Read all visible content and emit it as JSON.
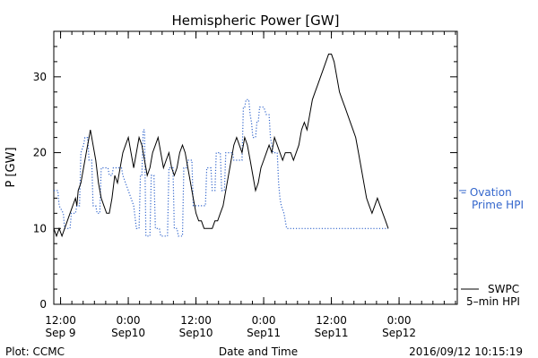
{
  "chart_data": {
    "type": "line",
    "title": "Hemispheric Power [GW]",
    "ylabel": "P [GW]",
    "xlabel": "Date and Time",
    "ylim": [
      0,
      36
    ],
    "yticks": [
      0,
      10,
      20,
      30
    ],
    "grid": false,
    "xticks": [
      {
        "x": 0.5,
        "line1": "12:00",
        "line2": "Sep 9"
      },
      {
        "x": 1.0,
        "line1": "0:00",
        "line2": "Sep10"
      },
      {
        "x": 1.5,
        "line1": "12:00",
        "line2": "Sep10"
      },
      {
        "x": 2.0,
        "line1": "0:00",
        "line2": "Sep11"
      },
      {
        "x": 2.5,
        "line1": "12:00",
        "line2": "Sep11"
      },
      {
        "x": 3.0,
        "line1": "0:00",
        "line2": "Sep12"
      }
    ],
    "xlim": [
      0.45,
      3.43
    ],
    "series": [
      {
        "name": "SWPC 5-min HPI",
        "legend_line1": "SWPC",
        "legend_line2": "5–min HPI",
        "color": "#000000",
        "style": "solid",
        "points": [
          [
            0.45,
            10
          ],
          [
            0.47,
            9
          ],
          [
            0.49,
            10
          ],
          [
            0.51,
            9
          ],
          [
            0.53,
            10
          ],
          [
            0.55,
            11
          ],
          [
            0.57,
            12
          ],
          [
            0.59,
            13
          ],
          [
            0.61,
            14
          ],
          [
            0.62,
            13
          ],
          [
            0.63,
            15
          ],
          [
            0.65,
            16
          ],
          [
            0.67,
            18
          ],
          [
            0.69,
            20
          ],
          [
            0.71,
            22
          ],
          [
            0.72,
            23
          ],
          [
            0.74,
            21
          ],
          [
            0.76,
            19
          ],
          [
            0.78,
            16
          ],
          [
            0.8,
            14
          ],
          [
            0.82,
            13
          ],
          [
            0.84,
            12
          ],
          [
            0.86,
            12
          ],
          [
            0.88,
            14
          ],
          [
            0.9,
            17
          ],
          [
            0.92,
            16
          ],
          [
            0.94,
            18
          ],
          [
            0.96,
            20
          ],
          [
            0.98,
            21
          ],
          [
            1.0,
            22
          ],
          [
            1.02,
            20
          ],
          [
            1.04,
            18
          ],
          [
            1.06,
            20
          ],
          [
            1.08,
            22
          ],
          [
            1.1,
            21
          ],
          [
            1.12,
            19
          ],
          [
            1.14,
            17
          ],
          [
            1.16,
            18
          ],
          [
            1.18,
            20
          ],
          [
            1.2,
            21
          ],
          [
            1.22,
            22
          ],
          [
            1.24,
            20
          ],
          [
            1.26,
            18
          ],
          [
            1.28,
            19
          ],
          [
            1.3,
            20
          ],
          [
            1.32,
            18
          ],
          [
            1.34,
            17
          ],
          [
            1.36,
            18
          ],
          [
            1.38,
            20
          ],
          [
            1.4,
            21
          ],
          [
            1.42,
            20
          ],
          [
            1.44,
            18
          ],
          [
            1.46,
            16
          ],
          [
            1.48,
            14
          ],
          [
            1.5,
            12
          ],
          [
            1.52,
            11
          ],
          [
            1.54,
            11
          ],
          [
            1.56,
            10
          ],
          [
            1.58,
            10
          ],
          [
            1.6,
            10
          ],
          [
            1.62,
            10
          ],
          [
            1.64,
            11
          ],
          [
            1.66,
            11
          ],
          [
            1.68,
            12
          ],
          [
            1.7,
            13
          ],
          [
            1.72,
            15
          ],
          [
            1.74,
            17
          ],
          [
            1.76,
            19
          ],
          [
            1.78,
            21
          ],
          [
            1.8,
            22
          ],
          [
            1.82,
            21
          ],
          [
            1.84,
            20
          ],
          [
            1.86,
            22
          ],
          [
            1.88,
            21
          ],
          [
            1.9,
            19
          ],
          [
            1.92,
            17
          ],
          [
            1.94,
            15
          ],
          [
            1.96,
            16
          ],
          [
            1.98,
            18
          ],
          [
            2.0,
            19
          ],
          [
            2.02,
            20
          ],
          [
            2.04,
            21
          ],
          [
            2.06,
            20
          ],
          [
            2.08,
            22
          ],
          [
            2.1,
            21
          ],
          [
            2.12,
            20
          ],
          [
            2.14,
            19
          ],
          [
            2.16,
            20
          ],
          [
            2.18,
            20
          ],
          [
            2.2,
            20
          ],
          [
            2.22,
            19
          ],
          [
            2.24,
            20
          ],
          [
            2.26,
            21
          ],
          [
            2.28,
            23
          ],
          [
            2.3,
            24
          ],
          [
            2.32,
            23
          ],
          [
            2.34,
            25
          ],
          [
            2.36,
            27
          ],
          [
            2.38,
            28
          ],
          [
            2.4,
            29
          ],
          [
            2.42,
            30
          ],
          [
            2.44,
            31
          ],
          [
            2.46,
            32
          ],
          [
            2.48,
            33
          ],
          [
            2.5,
            33
          ],
          [
            2.52,
            32
          ],
          [
            2.54,
            30
          ],
          [
            2.56,
            28
          ],
          [
            2.58,
            27
          ],
          [
            2.6,
            26
          ],
          [
            2.62,
            25
          ],
          [
            2.64,
            24
          ],
          [
            2.66,
            23
          ],
          [
            2.68,
            22
          ],
          [
            2.7,
            20
          ],
          [
            2.72,
            18
          ],
          [
            2.74,
            16
          ],
          [
            2.76,
            14
          ],
          [
            2.78,
            13
          ],
          [
            2.8,
            12
          ],
          [
            2.82,
            13
          ],
          [
            2.84,
            14
          ],
          [
            2.86,
            13
          ],
          [
            2.88,
            12
          ],
          [
            2.9,
            11
          ],
          [
            2.92,
            10
          ]
        ]
      },
      {
        "name": "Ovation Prime HPI",
        "legend_line1": "– Ovation",
        "legend_line2": "Prime HPI",
        "color": "#3366cc",
        "style": "dotted",
        "points": [
          [
            0.45,
            15
          ],
          [
            0.48,
            15
          ],
          [
            0.49,
            13
          ],
          [
            0.52,
            12
          ],
          [
            0.53,
            10
          ],
          [
            0.57,
            10
          ],
          [
            0.58,
            12
          ],
          [
            0.61,
            12
          ],
          [
            0.62,
            13
          ],
          [
            0.64,
            13
          ],
          [
            0.65,
            20
          ],
          [
            0.67,
            21
          ],
          [
            0.68,
            22
          ],
          [
            0.7,
            22
          ],
          [
            0.71,
            19
          ],
          [
            0.73,
            19
          ],
          [
            0.74,
            13
          ],
          [
            0.76,
            13
          ],
          [
            0.77,
            12
          ],
          [
            0.79,
            12
          ],
          [
            0.8,
            18
          ],
          [
            0.85,
            18
          ],
          [
            0.86,
            17
          ],
          [
            0.88,
            17
          ],
          [
            0.89,
            18
          ],
          [
            0.95,
            18
          ],
          [
            0.96,
            17
          ],
          [
            0.98,
            16
          ],
          [
            1.0,
            15
          ],
          [
            1.02,
            14
          ],
          [
            1.04,
            13
          ],
          [
            1.06,
            10
          ],
          [
            1.08,
            10
          ],
          [
            1.09,
            17
          ],
          [
            1.1,
            17
          ],
          [
            1.11,
            23
          ],
          [
            1.12,
            23
          ],
          [
            1.13,
            9
          ],
          [
            1.16,
            9
          ],
          [
            1.17,
            17
          ],
          [
            1.19,
            17
          ],
          [
            1.2,
            10
          ],
          [
            1.23,
            10
          ],
          [
            1.24,
            9
          ],
          [
            1.29,
            9
          ],
          [
            1.3,
            18
          ],
          [
            1.33,
            18
          ],
          [
            1.34,
            10
          ],
          [
            1.36,
            10
          ],
          [
            1.37,
            9
          ],
          [
            1.4,
            9
          ],
          [
            1.41,
            18
          ],
          [
            1.43,
            18
          ],
          [
            1.44,
            19
          ],
          [
            1.47,
            19
          ],
          [
            1.48,
            13
          ],
          [
            1.56,
            13
          ],
          [
            1.57,
            13
          ],
          [
            1.58,
            18
          ],
          [
            1.61,
            18
          ],
          [
            1.62,
            15
          ],
          [
            1.64,
            15
          ],
          [
            1.65,
            20
          ],
          [
            1.68,
            20
          ],
          [
            1.69,
            15
          ],
          [
            1.71,
            15
          ],
          [
            1.72,
            20
          ],
          [
            1.77,
            20
          ],
          [
            1.78,
            19
          ],
          [
            1.8,
            19
          ],
          [
            1.81,
            19
          ],
          [
            1.84,
            19
          ],
          [
            1.85,
            26
          ],
          [
            1.86,
            26
          ],
          [
            1.87,
            27
          ],
          [
            1.89,
            27
          ],
          [
            1.9,
            25
          ],
          [
            1.91,
            24
          ],
          [
            1.92,
            22
          ],
          [
            1.94,
            22
          ],
          [
            1.95,
            24
          ],
          [
            1.96,
            24
          ],
          [
            1.97,
            26
          ],
          [
            2.0,
            26
          ],
          [
            2.02,
            25
          ],
          [
            2.04,
            25
          ],
          [
            2.05,
            22
          ],
          [
            2.06,
            21
          ],
          [
            2.07,
            20
          ],
          [
            2.1,
            20
          ],
          [
            2.11,
            16
          ],
          [
            2.12,
            14
          ],
          [
            2.13,
            13
          ],
          [
            2.15,
            12
          ],
          [
            2.16,
            11
          ],
          [
            2.17,
            10
          ],
          [
            2.18,
            10
          ],
          [
            2.2,
            10
          ],
          [
            2.3,
            10
          ],
          [
            2.35,
            10
          ],
          [
            2.4,
            10
          ],
          [
            2.45,
            10
          ],
          [
            2.5,
            10
          ],
          [
            2.55,
            10
          ],
          [
            2.6,
            10
          ],
          [
            2.65,
            10
          ],
          [
            2.7,
            10
          ],
          [
            2.75,
            10
          ],
          [
            2.8,
            10
          ],
          [
            2.85,
            10
          ],
          [
            2.9,
            10
          ],
          [
            2.92,
            10
          ]
        ]
      }
    ]
  },
  "footer": {
    "plot_credit": "Plot: CCMC",
    "timestamp": "2016/09/12 10:15:19"
  }
}
